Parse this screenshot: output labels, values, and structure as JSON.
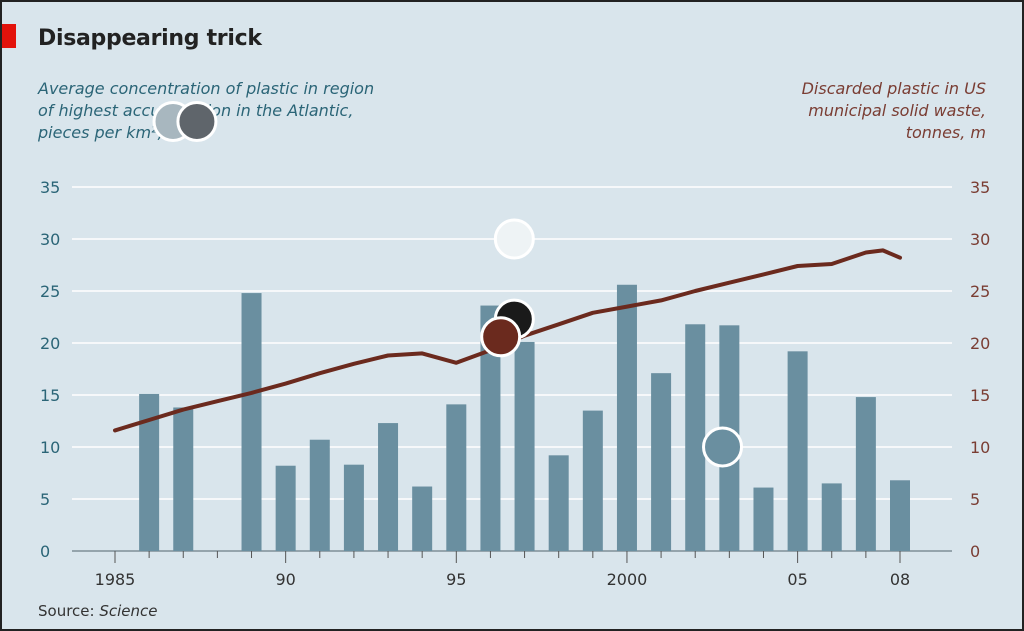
{
  "title": "Disappearing trick",
  "left_subtitle_lines": [
    "Average concentration of plastic in region",
    "of highest accumulation in the Atlantic,",
    "pieces per km², '000"
  ],
  "right_subtitle_lines": [
    "Discarded plastic in US",
    "municipal solid waste,",
    "tonnes, m"
  ],
  "source_label": "Source:",
  "source_name": "Science",
  "colors": {
    "bar": "#6a8fa0",
    "line": "#6b2a1e",
    "background": "#d9e5ec",
    "accent": "#e3120b",
    "left_axis": "#2b6577",
    "right_axis": "#7a3d33"
  },
  "chart_data": {
    "type": "bar",
    "x_range": [
      1985,
      2008.5
    ],
    "ylim": [
      0,
      35
    ],
    "y_ticks": [
      0,
      5,
      10,
      15,
      20,
      25,
      30,
      35
    ],
    "x_ticks": [
      {
        "x": 1985,
        "label": "1985"
      },
      {
        "x": 1990,
        "label": "90"
      },
      {
        "x": 1995,
        "label": "95"
      },
      {
        "x": 2000,
        "label": "2000"
      },
      {
        "x": 2005,
        "label": "05"
      },
      {
        "x": 2008,
        "label": "08"
      }
    ],
    "grid": true,
    "series": [
      {
        "type": "bar",
        "axis": "left",
        "x": [
          1986,
          1987,
          1989,
          1990,
          1991,
          1992,
          1993,
          1994,
          1995,
          1996,
          1997,
          1998,
          1999,
          2000,
          2001,
          2002,
          2003,
          2004,
          2005,
          2006,
          2007,
          2008
        ],
        "values": [
          15.1,
          13.8,
          24.8,
          8.2,
          10.7,
          8.3,
          12.3,
          6.2,
          14.1,
          23.6,
          20.1,
          9.2,
          13.5,
          25.6,
          17.1,
          21.8,
          21.7,
          6.1,
          19.2,
          6.5,
          14.8,
          6.8
        ]
      },
      {
        "type": "line",
        "axis": "right",
        "x": [
          1985,
          1986,
          1987,
          1988,
          1989,
          1990,
          1991,
          1992,
          1993,
          1994,
          1995,
          1996,
          1997,
          1998,
          1999,
          2000,
          2001,
          2002,
          2003,
          2004,
          2005,
          2006,
          2007,
          2007.5,
          2008
        ],
        "values": [
          11.6,
          12.6,
          13.6,
          14.4,
          15.2,
          16.1,
          17.1,
          18.0,
          18.8,
          19.0,
          18.1,
          19.3,
          20.7,
          21.8,
          22.9,
          23.5,
          24.1,
          25.0,
          25.8,
          26.6,
          27.4,
          27.6,
          28.7,
          28.9,
          28.2
        ]
      }
    ]
  },
  "markers": [
    {
      "name": "light-gray-marker",
      "x": 1986.7,
      "y": 41.3,
      "fill": "#a8b7bf"
    },
    {
      "name": "dark-gray-marker",
      "x": 1987.4,
      "y": 41.3,
      "fill": "#5f656b"
    },
    {
      "name": "white-marker",
      "x": 1996.7,
      "y": 30.0,
      "fill": "#eef3f5"
    },
    {
      "name": "black-marker",
      "x": 1996.7,
      "y": 22.3,
      "fill": "#1a1a1a"
    },
    {
      "name": "brown-marker",
      "x": 1996.3,
      "y": 20.6,
      "fill": "#6b2a1e"
    },
    {
      "name": "teal-marker",
      "x": 2002.8,
      "y": 10.0,
      "fill": "#6a8fa0"
    }
  ]
}
